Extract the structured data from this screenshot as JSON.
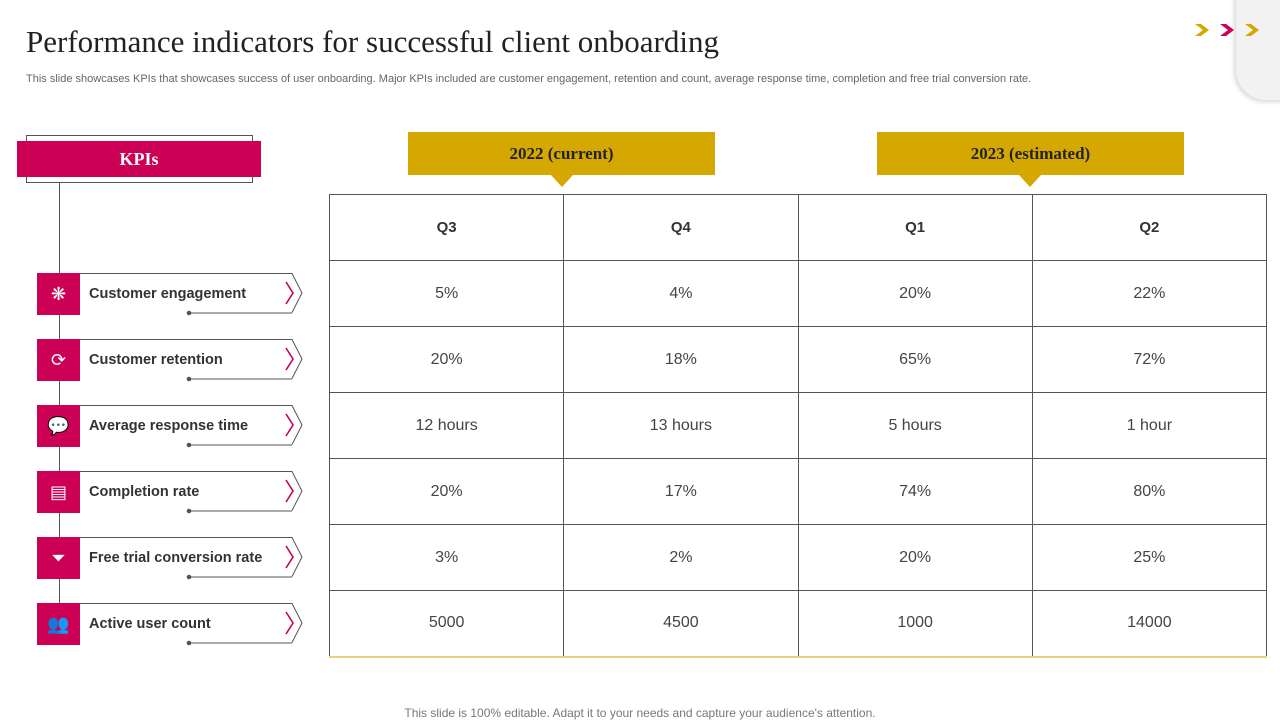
{
  "title": "Performance indicators for successful client onboarding",
  "subtitle": "This slide showcases KPIs that showcases success of user onboarding. Major KPIs included are customer engagement, retention and count, average response time, completion and free trial conversion rate.",
  "colors": {
    "accent": "#cc0055",
    "gold": "#d4a800"
  },
  "kpi_header": "KPIs",
  "kpis": [
    {
      "label": "Customer engagement",
      "icon": "network-people-icon"
    },
    {
      "label": "Customer retention",
      "icon": "retention-cycle-icon"
    },
    {
      "label": "Average response time",
      "icon": "chat-bubbles-icon"
    },
    {
      "label": "Completion rate",
      "icon": "document-check-icon"
    },
    {
      "label": "Free trial conversion rate",
      "icon": "funnel-icon"
    },
    {
      "label": "Active user count",
      "icon": "users-group-icon"
    }
  ],
  "year_headers": [
    "2022 (current)",
    "2023 (estimated)"
  ],
  "table": {
    "columns": [
      "Q3",
      "Q4",
      "Q1",
      "Q2"
    ],
    "rows": [
      [
        "5%",
        "4%",
        "20%",
        "22%"
      ],
      [
        "20%",
        "18%",
        "65%",
        "72%"
      ],
      [
        "12 hours",
        "13 hours",
        "5 hours",
        "1 hour"
      ],
      [
        "20%",
        "17%",
        "74%",
        "80%"
      ],
      [
        "3%",
        "2%",
        "20%",
        "25%"
      ],
      [
        "5000",
        "4500",
        "1000",
        "14000"
      ]
    ]
  },
  "footer": "This slide is 100% editable. Adapt it to your needs and capture your audience's attention."
}
